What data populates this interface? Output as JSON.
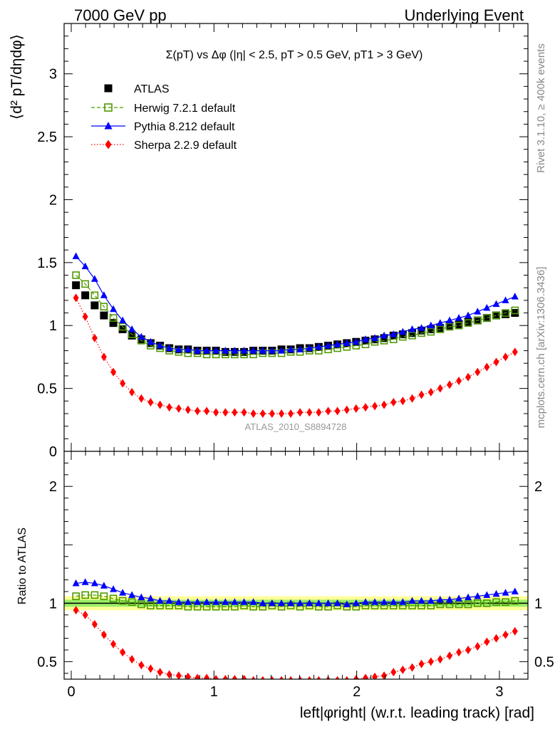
{
  "header": {
    "left": "7000 GeV pp",
    "right": "Underlying Event"
  },
  "side_labels": {
    "rivet": "Rivet 3.1.10, ≥ 400k events",
    "mcplots": "mcplots.cern.ch [arXiv:1306.3436]"
  },
  "chart_data": [
    {
      "type": "line",
      "panel": "main",
      "title": "Σ(pT) vs Δφ (|η| < 2.5, pT > 0.5 GeV, pT1 > 3 GeV)",
      "ylabel": "⟨d² pT/dηdφ⟩",
      "watermark": "ATLAS_2010_S8894728",
      "xlim": [
        -0.05,
        3.2
      ],
      "ylim": [
        0,
        3.4
      ],
      "yticks": [
        0,
        0.5,
        1,
        1.5,
        2,
        2.5,
        3
      ],
      "ytick_labels": [
        "0",
        "0.5",
        "1",
        "1.5",
        "2",
        "2.5",
        "3"
      ],
      "legend_position": "top-left",
      "x": [
        0.033,
        0.098,
        0.164,
        0.229,
        0.295,
        0.36,
        0.425,
        0.491,
        0.556,
        0.622,
        0.687,
        0.753,
        0.818,
        0.884,
        0.949,
        1.014,
        1.08,
        1.145,
        1.211,
        1.276,
        1.342,
        1.407,
        1.473,
        1.538,
        1.603,
        1.669,
        1.734,
        1.8,
        1.865,
        1.931,
        1.996,
        2.062,
        2.127,
        2.192,
        2.258,
        2.323,
        2.389,
        2.454,
        2.52,
        2.585,
        2.651,
        2.716,
        2.781,
        2.847,
        2.912,
        2.978,
        3.043,
        3.109
      ],
      "series": [
        {
          "name": "ATLAS",
          "color": "#000000",
          "marker": "filled-square",
          "values": [
            1.32,
            1.24,
            1.16,
            1.08,
            1.02,
            0.97,
            0.92,
            0.89,
            0.86,
            0.84,
            0.82,
            0.81,
            0.81,
            0.8,
            0.8,
            0.8,
            0.79,
            0.79,
            0.79,
            0.8,
            0.8,
            0.8,
            0.81,
            0.81,
            0.82,
            0.82,
            0.83,
            0.84,
            0.85,
            0.86,
            0.87,
            0.88,
            0.89,
            0.9,
            0.92,
            0.93,
            0.94,
            0.96,
            0.97,
            0.98,
            1.0,
            1.01,
            1.03,
            1.04,
            1.06,
            1.08,
            1.09,
            1.1
          ]
        },
        {
          "name": "Herwig 7.2.1 default",
          "color": "#4f9a00",
          "marker": "open-square",
          "line": "dashed",
          "values": [
            1.4,
            1.33,
            1.24,
            1.15,
            1.06,
            0.99,
            0.93,
            0.88,
            0.84,
            0.82,
            0.8,
            0.79,
            0.78,
            0.78,
            0.77,
            0.77,
            0.77,
            0.77,
            0.77,
            0.77,
            0.78,
            0.78,
            0.78,
            0.79,
            0.79,
            0.8,
            0.8,
            0.81,
            0.82,
            0.83,
            0.84,
            0.85,
            0.87,
            0.88,
            0.89,
            0.91,
            0.92,
            0.94,
            0.95,
            0.97,
            0.99,
            1.0,
            1.02,
            1.04,
            1.06,
            1.08,
            1.1,
            1.12
          ]
        },
        {
          "name": "Pythia 8.212 default",
          "color": "#0000ff",
          "marker": "filled-triangle",
          "line": "solid",
          "values": [
            1.55,
            1.47,
            1.37,
            1.24,
            1.13,
            1.04,
            0.97,
            0.91,
            0.87,
            0.84,
            0.82,
            0.81,
            0.81,
            0.8,
            0.8,
            0.8,
            0.8,
            0.8,
            0.8,
            0.8,
            0.8,
            0.8,
            0.8,
            0.81,
            0.81,
            0.82,
            0.83,
            0.84,
            0.85,
            0.86,
            0.87,
            0.89,
            0.9,
            0.92,
            0.93,
            0.95,
            0.97,
            0.98,
            1.0,
            1.02,
            1.04,
            1.06,
            1.08,
            1.11,
            1.14,
            1.17,
            1.2,
            1.23
          ]
        },
        {
          "name": "Sherpa 2.2.9 default",
          "color": "#ff0000",
          "marker": "filled-diamond",
          "line": "dotted",
          "values": [
            1.22,
            1.07,
            0.9,
            0.75,
            0.63,
            0.54,
            0.47,
            0.42,
            0.39,
            0.37,
            0.35,
            0.34,
            0.33,
            0.32,
            0.32,
            0.31,
            0.31,
            0.31,
            0.31,
            0.3,
            0.3,
            0.3,
            0.3,
            0.3,
            0.31,
            0.31,
            0.31,
            0.32,
            0.32,
            0.33,
            0.34,
            0.35,
            0.36,
            0.37,
            0.39,
            0.4,
            0.42,
            0.45,
            0.47,
            0.5,
            0.53,
            0.56,
            0.59,
            0.63,
            0.67,
            0.71,
            0.75,
            0.79
          ]
        }
      ]
    },
    {
      "type": "line",
      "panel": "ratio",
      "ylabel": "Ratio to ATLAS",
      "xlabel": "left|φright| (w.r.t. leading track) [rad]",
      "xlim": [
        -0.05,
        3.2
      ],
      "xticks": [
        0,
        1,
        2,
        3
      ],
      "xtick_labels": [
        "0",
        "1",
        "2",
        "3"
      ],
      "ylim": [
        0.35,
        2.3
      ],
      "yticks": [
        0.5,
        1,
        2
      ],
      "ytick_labels": [
        "0.5",
        "1",
        "2"
      ],
      "band_inner": [
        0.97,
        1.03
      ],
      "band_outer": [
        0.94,
        1.06
      ],
      "band_colors": {
        "inner": "#99ee66",
        "outer": "#ffff99"
      },
      "x": [
        0.033,
        0.098,
        0.164,
        0.229,
        0.295,
        0.36,
        0.425,
        0.491,
        0.556,
        0.622,
        0.687,
        0.753,
        0.818,
        0.884,
        0.949,
        1.014,
        1.08,
        1.145,
        1.211,
        1.276,
        1.342,
        1.407,
        1.473,
        1.538,
        1.603,
        1.669,
        1.734,
        1.8,
        1.865,
        1.931,
        1.996,
        2.062,
        2.127,
        2.192,
        2.258,
        2.323,
        2.389,
        2.454,
        2.52,
        2.585,
        2.651,
        2.716,
        2.781,
        2.847,
        2.912,
        2.978,
        3.043,
        3.109
      ],
      "series": [
        {
          "name": "Herwig 7.2.1 default",
          "color": "#4f9a00",
          "marker": "open-square",
          "values": [
            1.06,
            1.07,
            1.07,
            1.06,
            1.04,
            1.02,
            1.01,
            0.99,
            0.98,
            0.98,
            0.98,
            0.98,
            0.97,
            0.97,
            0.97,
            0.97,
            0.97,
            0.97,
            0.98,
            0.97,
            0.97,
            0.98,
            0.97,
            0.98,
            0.97,
            0.98,
            0.97,
            0.97,
            0.98,
            0.97,
            0.97,
            0.98,
            0.98,
            0.98,
            0.98,
            0.98,
            0.98,
            0.98,
            0.98,
            0.99,
            0.99,
            0.99,
            0.99,
            1.0,
            1.0,
            1.01,
            1.01,
            1.02
          ]
        },
        {
          "name": "Pythia 8.212 default",
          "color": "#0000ff",
          "marker": "filled-triangle",
          "values": [
            1.17,
            1.18,
            1.17,
            1.15,
            1.12,
            1.09,
            1.07,
            1.05,
            1.04,
            1.02,
            1.02,
            1.01,
            1.01,
            1.01,
            1.01,
            1.01,
            1.01,
            1.01,
            1.01,
            1.01,
            1.0,
            1.0,
            1.0,
            1.0,
            1.0,
            1.0,
            1.0,
            1.0,
            1.0,
            0.99,
            1.0,
            1.01,
            1.01,
            1.01,
            1.01,
            1.01,
            1.02,
            1.02,
            1.02,
            1.03,
            1.03,
            1.04,
            1.05,
            1.06,
            1.07,
            1.08,
            1.09,
            1.1
          ]
        },
        {
          "name": "Sherpa 2.2.9 default",
          "color": "#ff0000",
          "marker": "filled-diamond",
          "values": [
            0.94,
            0.9,
            0.82,
            0.73,
            0.65,
            0.58,
            0.52,
            0.47,
            0.44,
            0.41,
            0.39,
            0.38,
            0.37,
            0.36,
            0.36,
            0.35,
            0.35,
            0.35,
            0.35,
            0.34,
            0.34,
            0.34,
            0.34,
            0.34,
            0.34,
            0.34,
            0.34,
            0.34,
            0.34,
            0.34,
            0.35,
            0.36,
            0.37,
            0.38,
            0.41,
            0.43,
            0.45,
            0.48,
            0.5,
            0.52,
            0.55,
            0.58,
            0.6,
            0.63,
            0.67,
            0.7,
            0.73,
            0.76
          ]
        }
      ]
    }
  ]
}
